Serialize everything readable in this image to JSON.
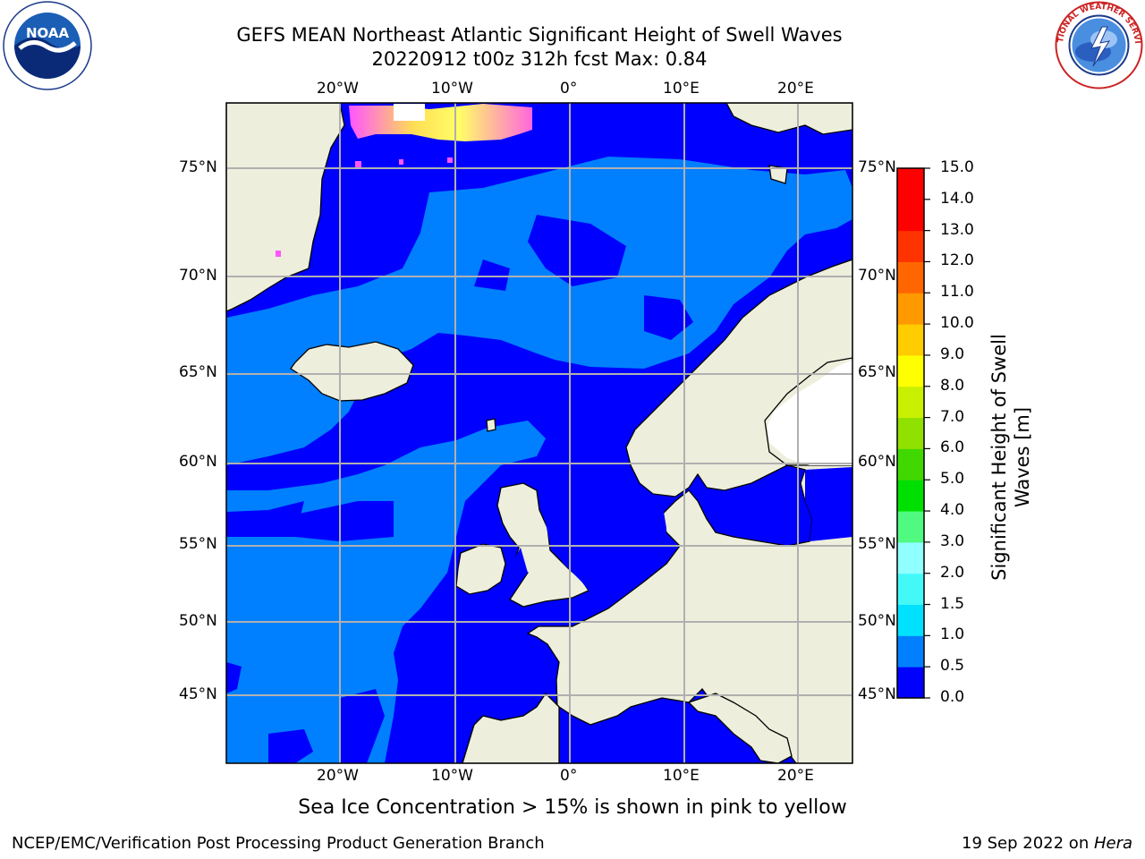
{
  "title": {
    "line1": "GEFS MEAN Northeast Atlantic Significant Height of Swell Waves",
    "line2": "20220912 t00z 312h fcst   Max: 0.84"
  },
  "logos": {
    "left": {
      "icon": "noaa-logo",
      "text": "NOAA"
    },
    "right": {
      "icon": "nws-logo",
      "text": "NATIONAL WEATHER SERVICE"
    }
  },
  "map": {
    "longitude_labels": [
      "20°W",
      "10°W",
      "0°",
      "10°E",
      "20°E"
    ],
    "latitude_labels": [
      "75°N",
      "70°N",
      "65°N",
      "60°N",
      "55°N",
      "50°N",
      "45°N"
    ],
    "colors": {
      "ocean_0_0.5": "#0000ff",
      "ocean_0.5_1.0": "#0080ff",
      "land": "#eeeedd",
      "grid": "#b0b0b0",
      "sea_ice_low": "#ff55ff",
      "sea_ice_high": "#ffff44"
    }
  },
  "colorbar": {
    "label": "Significant Height of Swell Waves [m]",
    "ticks": [
      "0.0",
      "0.5",
      "1.0",
      "1.5",
      "2.0",
      "3.0",
      "4.0",
      "5.0",
      "6.0",
      "7.0",
      "8.0",
      "9.0",
      "10.0",
      "11.0",
      "12.0",
      "13.0",
      "14.0",
      "15.0"
    ],
    "colors": [
      "#0000ff",
      "#0080ff",
      "#00e0ff",
      "#44f8f8",
      "#90ffff",
      "#50fa80",
      "#00e000",
      "#40d800",
      "#90e000",
      "#c8f000",
      "#ffff00",
      "#ffcc00",
      "#ff9900",
      "#ff6600",
      "#ff3300",
      "#ff0000",
      "#ff0000"
    ]
  },
  "ice_note": "Sea Ice Concentration > 15% is shown in pink to yellow",
  "footer": {
    "left": "NCEP/EMC/Verification Post Processing Product Generation Branch",
    "right_prefix": "19 Sep 2022 on ",
    "right_italic": "Hera"
  }
}
